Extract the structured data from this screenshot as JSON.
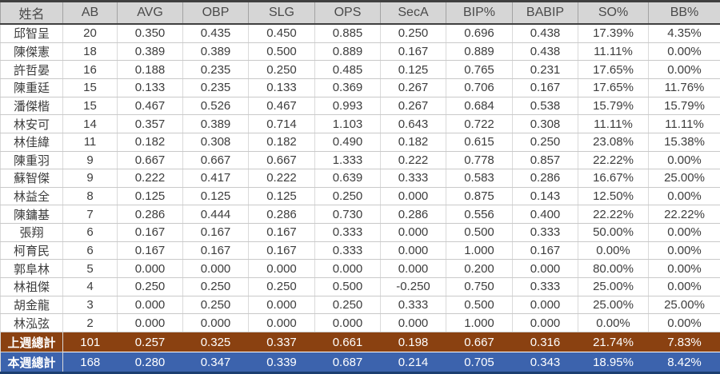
{
  "table": {
    "headers": [
      "姓名",
      "AB",
      "AVG",
      "OBP",
      "SLG",
      "OPS",
      "SecA",
      "BIP%",
      "BABIP",
      "SO%",
      "BB%"
    ],
    "rows": [
      [
        "邱智呈",
        "20",
        "0.350",
        "0.435",
        "0.450",
        "0.885",
        "0.250",
        "0.696",
        "0.438",
        "17.39%",
        "4.35%"
      ],
      [
        "陳傑憲",
        "18",
        "0.389",
        "0.389",
        "0.500",
        "0.889",
        "0.167",
        "0.889",
        "0.438",
        "11.11%",
        "0.00%"
      ],
      [
        "許哲晏",
        "16",
        "0.188",
        "0.235",
        "0.250",
        "0.485",
        "0.125",
        "0.765",
        "0.231",
        "17.65%",
        "0.00%"
      ],
      [
        "陳重廷",
        "15",
        "0.133",
        "0.235",
        "0.133",
        "0.369",
        "0.267",
        "0.706",
        "0.167",
        "17.65%",
        "11.76%"
      ],
      [
        "潘傑楷",
        "15",
        "0.467",
        "0.526",
        "0.467",
        "0.993",
        "0.267",
        "0.684",
        "0.538",
        "15.79%",
        "15.79%"
      ],
      [
        "林安可",
        "14",
        "0.357",
        "0.389",
        "0.714",
        "1.103",
        "0.643",
        "0.722",
        "0.308",
        "11.11%",
        "11.11%"
      ],
      [
        "林佳緯",
        "11",
        "0.182",
        "0.308",
        "0.182",
        "0.490",
        "0.182",
        "0.615",
        "0.250",
        "23.08%",
        "15.38%"
      ],
      [
        "陳重羽",
        "9",
        "0.667",
        "0.667",
        "0.667",
        "1.333",
        "0.222",
        "0.778",
        "0.857",
        "22.22%",
        "0.00%"
      ],
      [
        "蘇智傑",
        "9",
        "0.222",
        "0.417",
        "0.222",
        "0.639",
        "0.333",
        "0.583",
        "0.286",
        "16.67%",
        "25.00%"
      ],
      [
        "林益全",
        "8",
        "0.125",
        "0.125",
        "0.125",
        "0.250",
        "0.000",
        "0.875",
        "0.143",
        "12.50%",
        "0.00%"
      ],
      [
        "陳鏞基",
        "7",
        "0.286",
        "0.444",
        "0.286",
        "0.730",
        "0.286",
        "0.556",
        "0.400",
        "22.22%",
        "22.22%"
      ],
      [
        "張翔",
        "6",
        "0.167",
        "0.167",
        "0.167",
        "0.333",
        "0.000",
        "0.500",
        "0.333",
        "50.00%",
        "0.00%"
      ],
      [
        "柯育民",
        "6",
        "0.167",
        "0.167",
        "0.167",
        "0.333",
        "0.000",
        "1.000",
        "0.167",
        "0.00%",
        "0.00%"
      ],
      [
        "郭阜林",
        "5",
        "0.000",
        "0.000",
        "0.000",
        "0.000",
        "0.000",
        "0.200",
        "0.000",
        "80.00%",
        "0.00%"
      ],
      [
        "林祖傑",
        "4",
        "0.250",
        "0.250",
        "0.250",
        "0.500",
        "-0.250",
        "0.750",
        "0.333",
        "25.00%",
        "0.00%"
      ],
      [
        "胡金龍",
        "3",
        "0.000",
        "0.250",
        "0.000",
        "0.250",
        "0.333",
        "0.500",
        "0.000",
        "25.00%",
        "25.00%"
      ],
      [
        "林泓弦",
        "2",
        "0.000",
        "0.000",
        "0.000",
        "0.000",
        "0.000",
        "1.000",
        "0.000",
        "0.00%",
        "0.00%"
      ]
    ],
    "totals": [
      {
        "name": "last-week-total-row",
        "bg": "#8a4111",
        "cells": [
          "上週總計",
          "101",
          "0.257",
          "0.325",
          "0.337",
          "0.661",
          "0.198",
          "0.667",
          "0.316",
          "21.74%",
          "7.83%"
        ]
      },
      {
        "name": "this-week-total-row",
        "bg": "#3c63ad",
        "cells": [
          "本週總計",
          "168",
          "0.280",
          "0.347",
          "0.339",
          "0.687",
          "0.214",
          "0.705",
          "0.343",
          "18.95%",
          "8.42%"
        ]
      }
    ]
  },
  "colors": {
    "header_bg": "#d6d6d6",
    "header_border": "#404040",
    "grid_line": "#c9c9c9",
    "last_week_bg": "#8a4111",
    "this_week_bg": "#3c63ad",
    "total_text": "#ffffff",
    "body_text": "#3d3d3d"
  }
}
